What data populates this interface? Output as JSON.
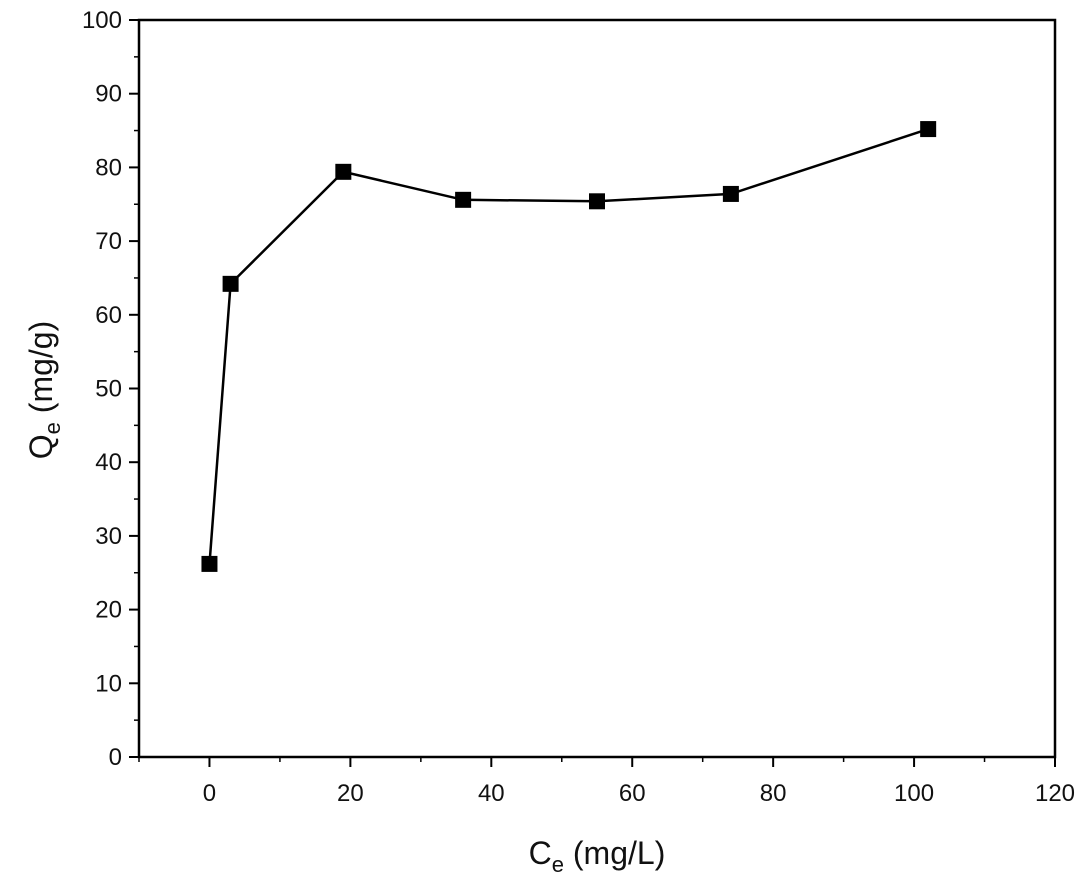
{
  "chart_data": {
    "type": "line",
    "xlabel": {
      "main": "C",
      "sub": "e",
      "rest": " (mg/L)"
    },
    "ylabel": {
      "main": "Q",
      "sub": "e",
      "rest": " (mg/g)"
    },
    "xlim": [
      -10,
      120
    ],
    "ylim": [
      0,
      100
    ],
    "xticks": [
      0,
      20,
      40,
      60,
      80,
      100,
      120
    ],
    "yticks": [
      0,
      10,
      20,
      30,
      40,
      50,
      60,
      70,
      80,
      90,
      100
    ],
    "x_minor_step": 10,
    "y_minor_step": 5,
    "marker": "square",
    "grid": false,
    "series": [
      {
        "x": [
          0,
          3,
          19,
          36,
          55,
          74,
          102
        ],
        "y": [
          26.2,
          64.2,
          79.4,
          75.6,
          75.4,
          76.4,
          85.2
        ]
      }
    ]
  }
}
